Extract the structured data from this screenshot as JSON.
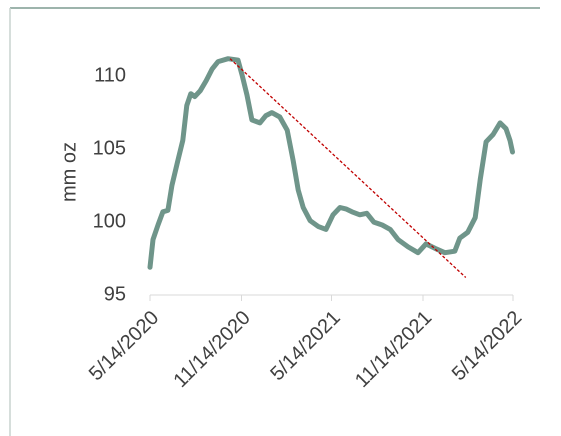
{
  "chart_data": {
    "type": "line",
    "y_label": "mm oz",
    "x": [
      "5/14/2020",
      "5/20/2020",
      "5/30/2020",
      "6/9/2020",
      "6/19/2020",
      "6/27/2020",
      "7/9/2020",
      "7/19/2020",
      "7/27/2020",
      "8/4/2020",
      "8/12/2020",
      "8/23/2020",
      "9/4/2020",
      "9/16/2020",
      "9/28/2020",
      "10/18/2020",
      "11/7/2020",
      "11/15/2020",
      "11/25/2020",
      "12/5/2020",
      "12/21/2020",
      "1/2/2021",
      "1/14/2021",
      "1/30/2021",
      "2/14/2021",
      "2/26/2021",
      "3/8/2021",
      "3/18/2021",
      "4/1/2021",
      "4/17/2021",
      "5/3/2021",
      "5/17/2021",
      "5/31/2021",
      "6/12/2021",
      "6/24/2021",
      "7/10/2021",
      "7/24/2021",
      "8/7/2021",
      "8/24/2021",
      "9/9/2021",
      "9/25/2021",
      "10/15/2021",
      "11/4/2021",
      "11/20/2021",
      "12/8/2021",
      "12/28/2021",
      "1/17/2022",
      "1/27/2022",
      "2/12/2022",
      "2/27/2022",
      "3/9/2022",
      "3/21/2022",
      "4/4/2022",
      "4/18/2022",
      "4/30/2022",
      "5/8/2022",
      "5/13/2022"
    ],
    "series": [
      {
        "color": "#6f958a",
        "values": [
          96.9,
          98.8,
          99.8,
          100.7,
          100.8,
          102.5,
          104.2,
          105.6,
          108.0,
          108.8,
          108.6,
          109.0,
          109.7,
          110.5,
          111.0,
          111.2,
          111.1,
          110.1,
          108.7,
          107.0,
          106.8,
          107.3,
          107.5,
          107.2,
          106.3,
          104.2,
          102.2,
          101.0,
          100.1,
          99.7,
          99.5,
          100.5,
          101.0,
          100.9,
          100.7,
          100.5,
          100.6,
          100.0,
          99.8,
          99.5,
          98.8,
          98.3,
          97.9,
          98.5,
          98.2,
          97.9,
          98.0,
          98.9,
          99.3,
          100.3,
          102.9,
          105.5,
          106.0,
          106.8,
          106.4,
          105.6,
          104.8
        ]
      }
    ],
    "trendline": {
      "color": "#c00000",
      "x": [
        "10/22/2020",
        "2/8/2022"
      ],
      "values": [
        111.2,
        96.2
      ]
    },
    "xlim": [
      "5/14/2020",
      "5/14/2022"
    ],
    "xticks": [
      "5/14/2020",
      "11/14/2020",
      "5/14/2021",
      "11/14/2021",
      "5/14/2022"
    ],
    "ylim": [
      95,
      112
    ],
    "yticks": [
      95,
      100,
      105,
      110
    ]
  }
}
